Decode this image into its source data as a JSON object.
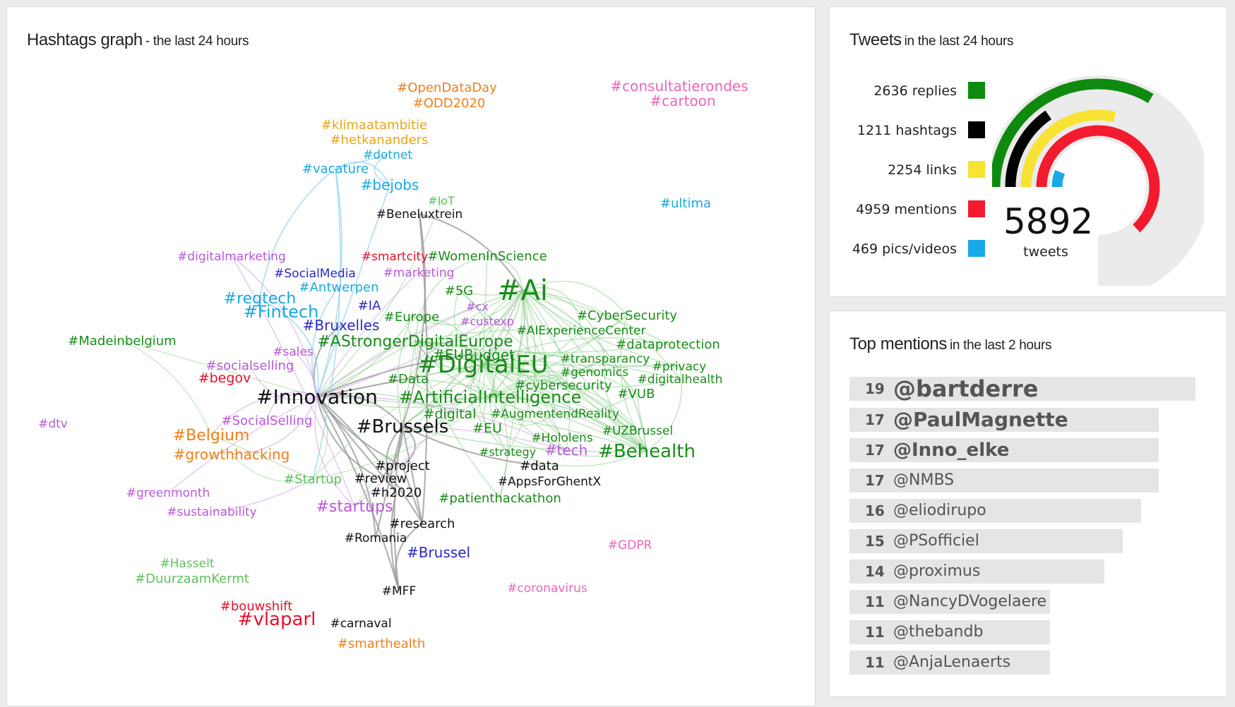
{
  "graph": {
    "title": "Hashtags graph",
    "subtitle": "- the last 24 hours",
    "hashtags": [
      {
        "text": "#OpenDataDay",
        "color": "#f07f1a"
      },
      {
        "text": "#ODD2020",
        "color": "#f07f1a"
      },
      {
        "text": "#consultatierondes",
        "color": "#e868b8"
      },
      {
        "text": "#cartoon",
        "color": "#e868b8"
      },
      {
        "text": "#klimaatambitie",
        "color": "#e8a516"
      },
      {
        "text": "#hetkananders",
        "color": "#e8a516"
      },
      {
        "text": "#dotnet",
        "color": "#18a8de"
      },
      {
        "text": "#vacature",
        "color": "#18a8de"
      },
      {
        "text": "#bejobs",
        "color": "#18a8de"
      },
      {
        "text": "#IoT",
        "color": "#5cc25c"
      },
      {
        "text": "#Beneluxtrein",
        "color": "#111111"
      },
      {
        "text": "#ultima",
        "color": "#18a8de"
      },
      {
        "text": "#digitalmarketing",
        "color": "#b858d8"
      },
      {
        "text": "#smartcity",
        "color": "#e8102c"
      },
      {
        "text": "#WomenInScience",
        "color": "#1a8c1a"
      },
      {
        "text": "#SocialMedia",
        "color": "#2a2ac8"
      },
      {
        "text": "#marketing",
        "color": "#b858d8"
      },
      {
        "text": "#Antwerpen",
        "color": "#18a8de"
      },
      {
        "text": "#5G",
        "color": "#1a8c1a"
      },
      {
        "text": "#Ai",
        "color": "#1a8c1a"
      },
      {
        "text": "#regtech",
        "color": "#18a8de"
      },
      {
        "text": "#IA",
        "color": "#2a2ac8"
      },
      {
        "text": "#cx",
        "color": "#b858d8"
      },
      {
        "text": "#Fintech",
        "color": "#18a8de"
      },
      {
        "text": "#Europe",
        "color": "#1a8c1a"
      },
      {
        "text": "#CyberSecurity",
        "color": "#1a8c1a"
      },
      {
        "text": "#custexp",
        "color": "#b858d8"
      },
      {
        "text": "#Bruxelles",
        "color": "#2a2ac8"
      },
      {
        "text": "#AIExperienceCenter",
        "color": "#1a8c1a"
      },
      {
        "text": "#Madeinbelgium",
        "color": "#1a8c1a"
      },
      {
        "text": "#AStrongerDigitalEurope",
        "color": "#1a8c1a"
      },
      {
        "text": "#dataprotection",
        "color": "#1a8c1a"
      },
      {
        "text": "#sales",
        "color": "#b858d8"
      },
      {
        "text": "#EUBudget",
        "color": "#1a8c1a"
      },
      {
        "text": "#transparancy",
        "color": "#1a8c1a"
      },
      {
        "text": "#socialselling",
        "color": "#b858d8"
      },
      {
        "text": "#DigitalEU",
        "color": "#1a8c1a"
      },
      {
        "text": "#privacy",
        "color": "#1a8c1a"
      },
      {
        "text": "#genomics",
        "color": "#1a8c1a"
      },
      {
        "text": "#begov",
        "color": "#e8102c"
      },
      {
        "text": "#Data",
        "color": "#1a8c1a"
      },
      {
        "text": "#digitalhealth",
        "color": "#1a8c1a"
      },
      {
        "text": "#cybersecurity",
        "color": "#1a8c1a"
      },
      {
        "text": "#VUB",
        "color": "#1a8c1a"
      },
      {
        "text": "#Innovation",
        "color": "#111111"
      },
      {
        "text": "#ArtificialIntelligence",
        "color": "#1a8c1a"
      },
      {
        "text": "#digital",
        "color": "#1a8c1a"
      },
      {
        "text": "#AugmentendReality",
        "color": "#1a8c1a"
      },
      {
        "text": "#dtv",
        "color": "#b858d8"
      },
      {
        "text": "#SocialSelling",
        "color": "#b858d8"
      },
      {
        "text": "#Brussels",
        "color": "#111111"
      },
      {
        "text": "#EU",
        "color": "#1a8c1a"
      },
      {
        "text": "#UZBrussel",
        "color": "#1a8c1a"
      },
      {
        "text": "#Belgium",
        "color": "#f07f1a"
      },
      {
        "text": "#Hololens",
        "color": "#1a8c1a"
      },
      {
        "text": "#tech",
        "color": "#b858d8"
      },
      {
        "text": "#Behealth",
        "color": "#1a8c1a"
      },
      {
        "text": "#strategy",
        "color": "#1a8c1a"
      },
      {
        "text": "#growthhacking",
        "color": "#f07f1a"
      },
      {
        "text": "#project",
        "color": "#111111"
      },
      {
        "text": "#data",
        "color": "#111111"
      },
      {
        "text": "#Startup",
        "color": "#5cc25c"
      },
      {
        "text": "#review",
        "color": "#111111"
      },
      {
        "text": "#AppsForGhentX",
        "color": "#111111"
      },
      {
        "text": "#greenmonth",
        "color": "#b858d8"
      },
      {
        "text": "#h2020",
        "color": "#111111"
      },
      {
        "text": "#patienthackathon",
        "color": "#1a8c1a"
      },
      {
        "text": "#startups",
        "color": "#b858d8"
      },
      {
        "text": "#sustainability",
        "color": "#b858d8"
      },
      {
        "text": "#research",
        "color": "#111111"
      },
      {
        "text": "#Romania",
        "color": "#111111"
      },
      {
        "text": "#GDPR",
        "color": "#e868b8"
      },
      {
        "text": "#Brussel",
        "color": "#2a2ac8"
      },
      {
        "text": "#Hasselt",
        "color": "#5cc25c"
      },
      {
        "text": "#DuurzaamKermt",
        "color": "#5cc25c"
      },
      {
        "text": "#coronavirus",
        "color": "#e868b8"
      },
      {
        "text": "#MFF",
        "color": "#111111"
      },
      {
        "text": "#bouwshift",
        "color": "#e8102c"
      },
      {
        "text": "#vlaparl",
        "color": "#e8102c"
      },
      {
        "text": "#carnaval",
        "color": "#111111"
      },
      {
        "text": "#smarthealth",
        "color": "#f07f1a"
      }
    ]
  },
  "tweets": {
    "title": "Tweets",
    "subtitle": "in the last 24 hours",
    "total": "5892",
    "total_label": "tweets",
    "categories": [
      {
        "count": 2636,
        "label": "2636 replies",
        "color": "#0e8a0e"
      },
      {
        "count": 1211,
        "label": "1211 hashtags",
        "color": "#000000"
      },
      {
        "count": 2254,
        "label": "2254 links",
        "color": "#f8e232"
      },
      {
        "count": 4959,
        "label": "4959 mentions",
        "color": "#f21b2d"
      },
      {
        "count": 469,
        "label": "469 pics/videos",
        "color": "#19a9e8"
      }
    ]
  },
  "mentions": {
    "title": "Top mentions",
    "subtitle": "in the last 2 hours",
    "items": [
      {
        "count": "19",
        "name": "@bartderre",
        "value": 19
      },
      {
        "count": "17",
        "name": "@PaulMagnette",
        "value": 17
      },
      {
        "count": "17",
        "name": "@Inno_elke",
        "value": 17
      },
      {
        "count": "17",
        "name": "@NMBS",
        "value": 17
      },
      {
        "count": "16",
        "name": "@eliodirupo",
        "value": 16
      },
      {
        "count": "15",
        "name": "@PSofficiel",
        "value": 15
      },
      {
        "count": "14",
        "name": "@proximus",
        "value": 14
      },
      {
        "count": "11",
        "name": "@NancyDVogelaere",
        "value": 11
      },
      {
        "count": "11",
        "name": "@thebandb",
        "value": 11
      },
      {
        "count": "11",
        "name": "@AnjaLenaerts",
        "value": 11
      }
    ]
  }
}
